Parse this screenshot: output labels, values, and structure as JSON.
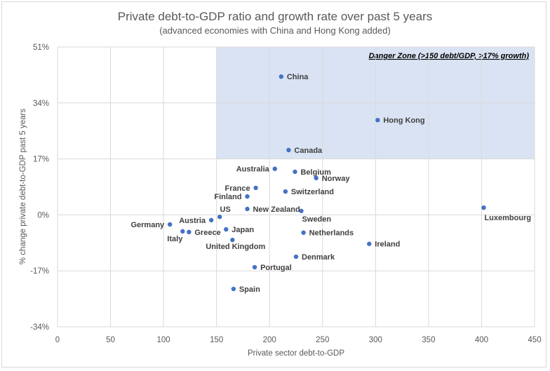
{
  "chart_data": {
    "type": "scatter",
    "title": "Private debt-to-GDP ratio and growth rate over past 5 years",
    "subtitle": "(advanced economies with China and Hong Kong added)",
    "xlabel": "Private sector debt-to-GDP",
    "ylabel": "% change private debt-to-GDP past 5 years",
    "xlim": [
      0,
      450
    ],
    "ylim": [
      -34,
      51
    ],
    "x_ticks": [
      0,
      50,
      100,
      150,
      200,
      250,
      300,
      350,
      400,
      450
    ],
    "x_tick_labels": [
      "0",
      "50",
      "100",
      "150",
      "200",
      "250",
      "300",
      "350",
      "400",
      "450"
    ],
    "y_ticks": [
      -34,
      -17,
      0,
      17,
      34,
      51
    ],
    "y_tick_labels": [
      "-34%",
      "-17%",
      "0%",
      "17%",
      "34%",
      "51%"
    ],
    "grid": true,
    "legend": "none",
    "marker_color": "#4472C4",
    "danger_zone": {
      "label": "Danger Zone (>150 debt/GDP, >17% growth)",
      "x_min": 150,
      "y_min": 17,
      "fill_color": "#DAE3F3"
    },
    "points": [
      {
        "name": "China",
        "x": 211,
        "y": 42.0,
        "label_pos": "right"
      },
      {
        "name": "Hong Kong",
        "x": 302,
        "y": 28.8,
        "label_pos": "right"
      },
      {
        "name": "Canada",
        "x": 218,
        "y": 19.7,
        "label_pos": "right"
      },
      {
        "name": "Australia",
        "x": 205,
        "y": 14.0,
        "label_pos": "left"
      },
      {
        "name": "Belgium",
        "x": 224,
        "y": 13.1,
        "label_pos": "right"
      },
      {
        "name": "Norway",
        "x": 244,
        "y": 11.2,
        "label_pos": "right"
      },
      {
        "name": "France",
        "x": 187,
        "y": 8.2,
        "label_pos": "left"
      },
      {
        "name": "Switzerland",
        "x": 215,
        "y": 7.1,
        "label_pos": "right"
      },
      {
        "name": "Finland",
        "x": 179,
        "y": 5.6,
        "label_pos": "left"
      },
      {
        "name": "New Zealand",
        "x": 179,
        "y": 1.8,
        "label_pos": "right"
      },
      {
        "name": "Sweden",
        "x": 230,
        "y": 1.2,
        "label_pos": "below"
      },
      {
        "name": "Luxembourg",
        "x": 402,
        "y": 2.2,
        "label_pos": "below"
      },
      {
        "name": "US",
        "x": 153,
        "y": -0.6,
        "label_pos": "above"
      },
      {
        "name": "Austria",
        "x": 145,
        "y": -1.6,
        "label_pos": "left"
      },
      {
        "name": "Germany",
        "x": 106,
        "y": -2.9,
        "label_pos": "left"
      },
      {
        "name": "Italy",
        "x": 118,
        "y": -5.0,
        "label_pos": "below"
      },
      {
        "name": "Greece",
        "x": 124,
        "y": -5.2,
        "label_pos": "right"
      },
      {
        "name": "Japan",
        "x": 159,
        "y": -4.4,
        "label_pos": "right"
      },
      {
        "name": "United Kingdom",
        "x": 165,
        "y": -7.6,
        "label_pos": "below"
      },
      {
        "name": "Netherlands",
        "x": 232,
        "y": -5.4,
        "label_pos": "right"
      },
      {
        "name": "Ireland",
        "x": 294,
        "y": -8.8,
        "label_pos": "right"
      },
      {
        "name": "Denmark",
        "x": 225,
        "y": -12.7,
        "label_pos": "right"
      },
      {
        "name": "Portugal",
        "x": 186,
        "y": -15.9,
        "label_pos": "right"
      },
      {
        "name": "Spain",
        "x": 166,
        "y": -22.5,
        "label_pos": "right"
      }
    ]
  }
}
